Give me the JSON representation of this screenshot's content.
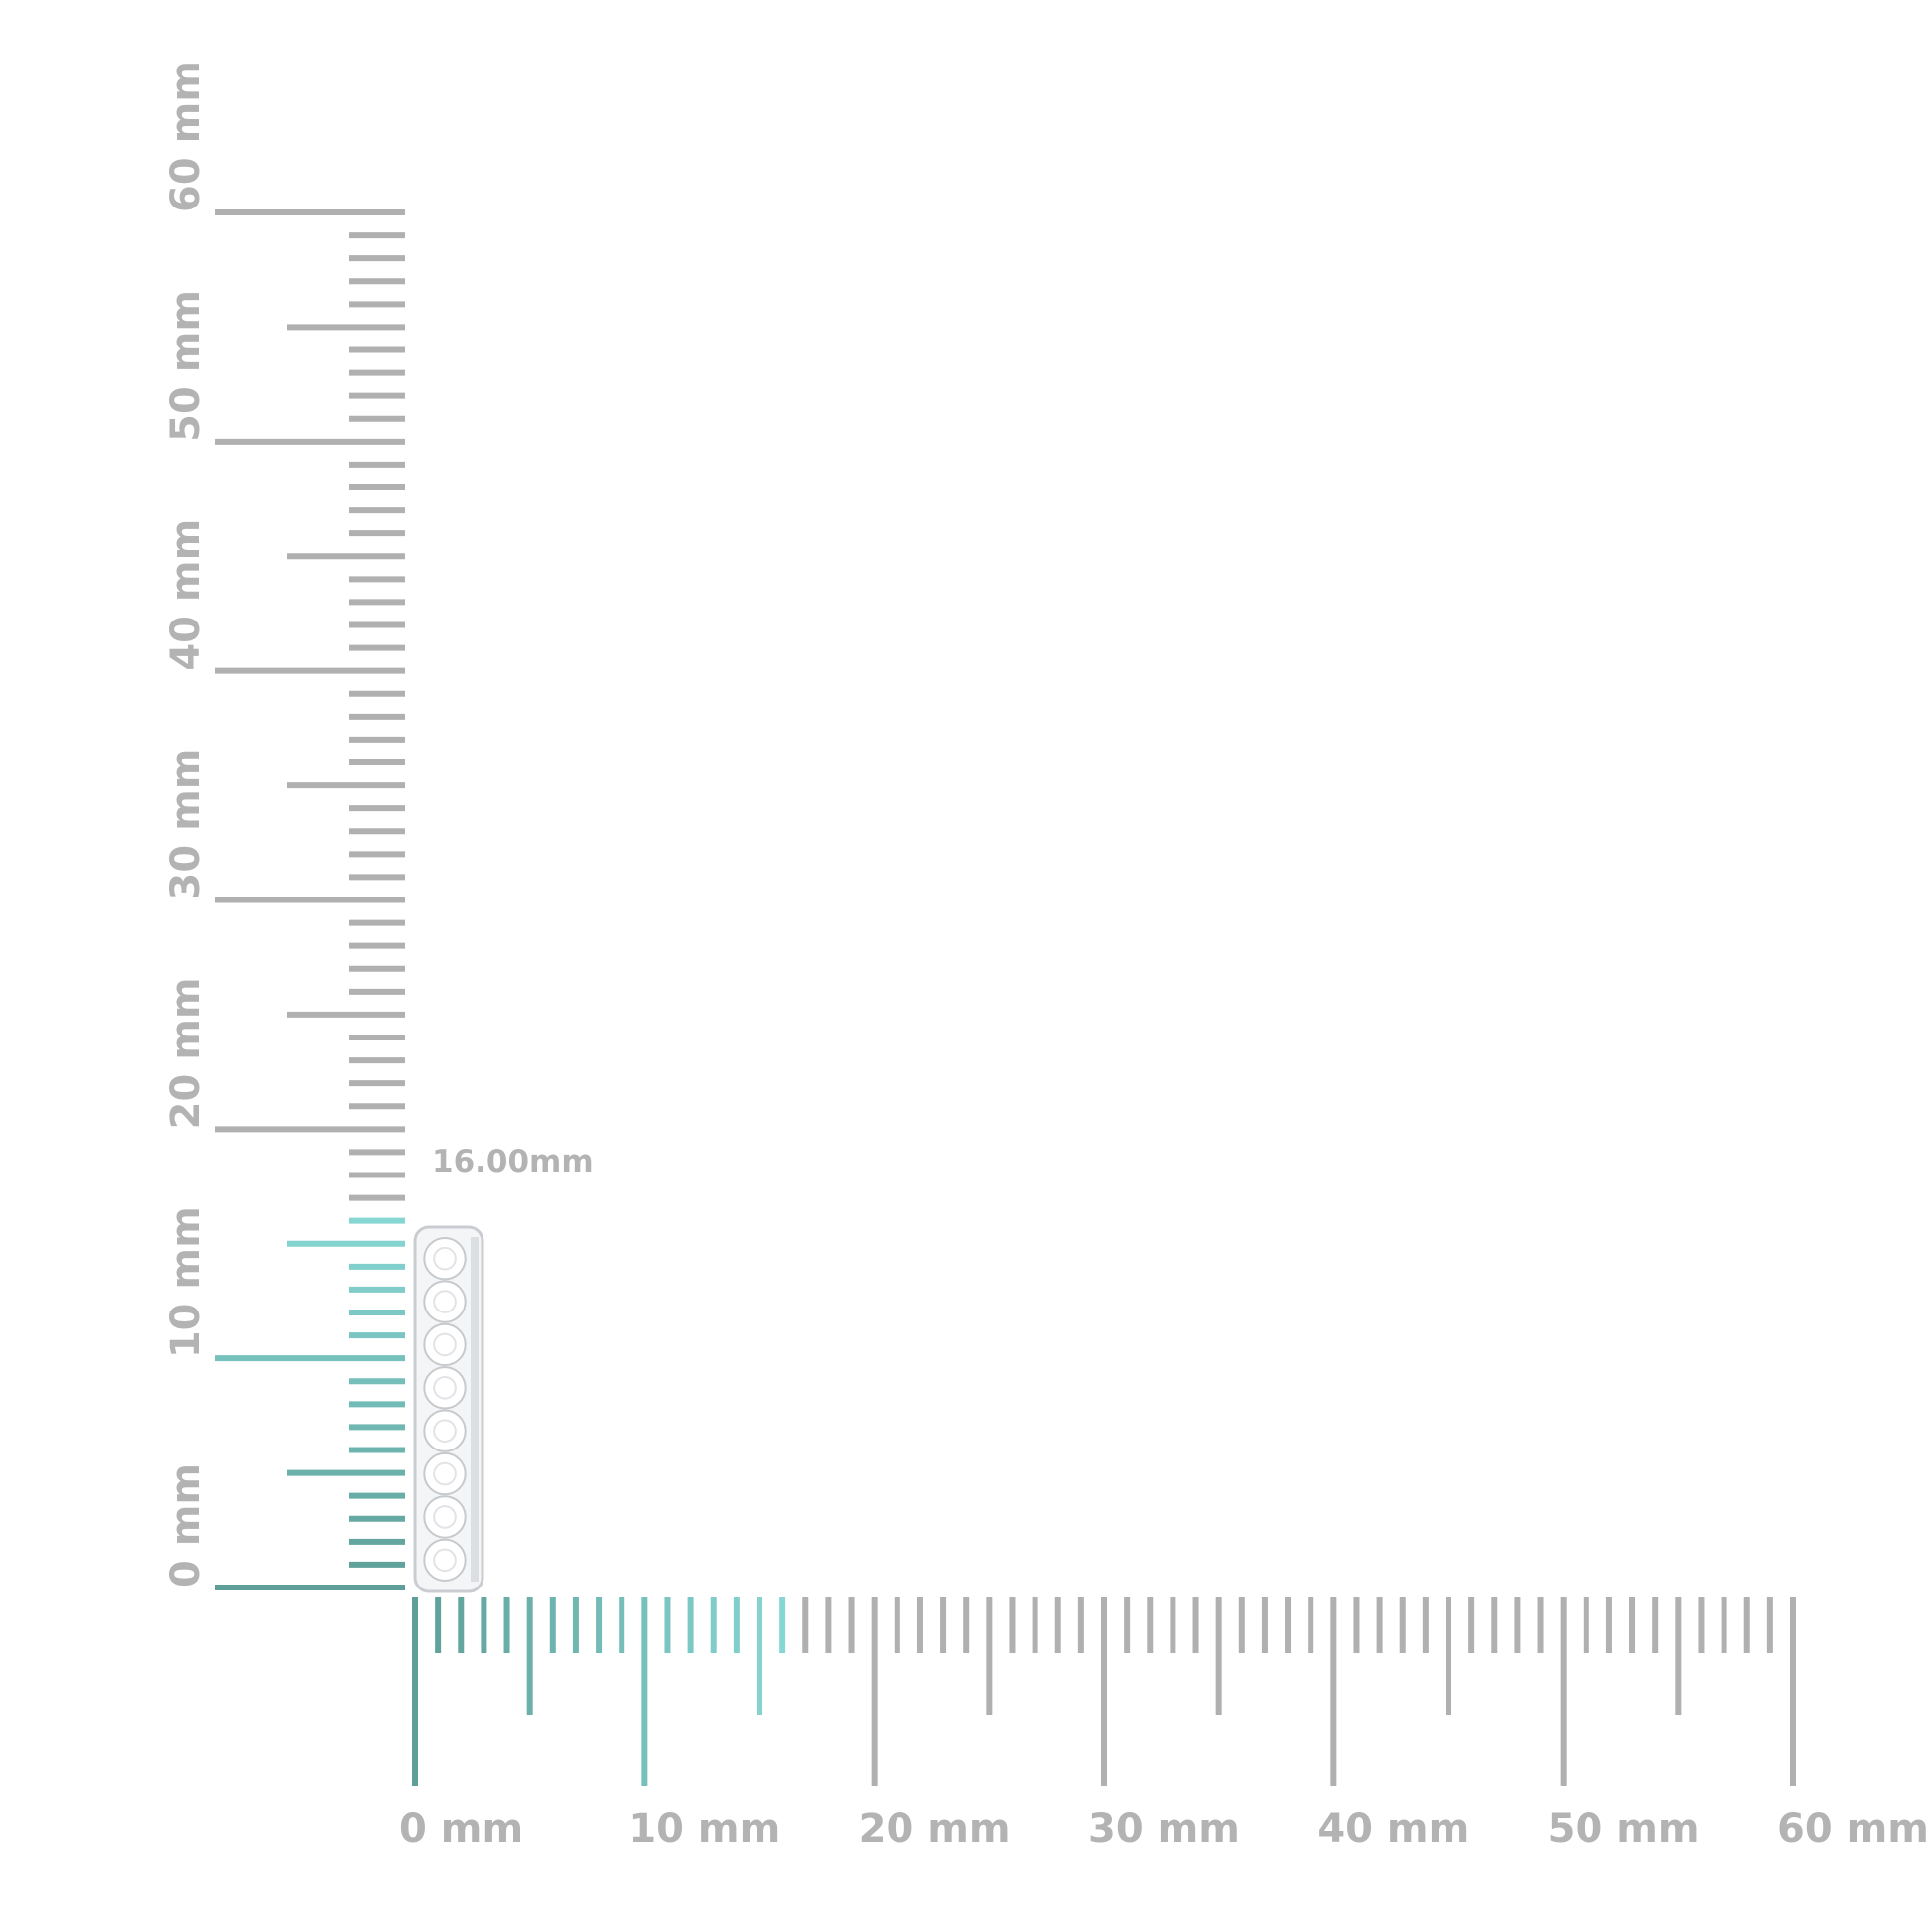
{
  "units": "mm",
  "vertical_ruler": {
    "range": [
      0,
      60
    ],
    "highlight_up_to": 16,
    "labels": [
      "0 mm",
      "10 mm",
      "20 mm",
      "30 mm",
      "40 mm",
      "50 mm",
      "60 mm"
    ]
  },
  "horizontal_ruler": {
    "range": [
      0,
      60
    ],
    "highlight_up_to": 16,
    "labels": [
      "0 mm",
      "10 mm",
      "20 mm",
      "30 mm",
      "40 mm",
      "50 mm",
      "60 mm"
    ]
  },
  "measurement": {
    "label": "16.00mm",
    "value_mm": 16
  },
  "product": {
    "type": "huggie hoop earring with round diamonds",
    "stone_count": 8
  },
  "colors": {
    "ruler": "#b0b0b0",
    "highlight_dark": "#5e9f99",
    "highlight_light": "#86d6d3",
    "label": "#b3b3b3"
  }
}
